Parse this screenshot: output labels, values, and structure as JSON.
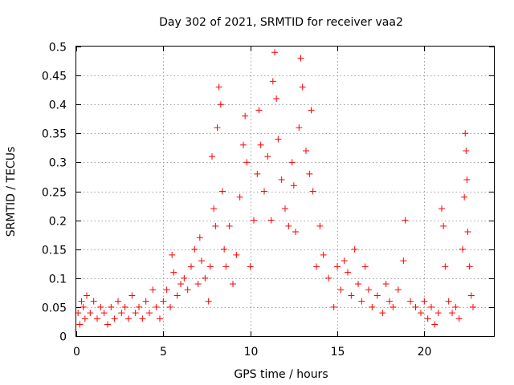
{
  "chart_data": {
    "type": "scatter",
    "title": "Day 302 of 2021, SRMTID for receiver vaa2",
    "xlabel": "GPS time / hours",
    "ylabel": "SRMTID / TECUs",
    "xlim": [
      0,
      24
    ],
    "ylim": [
      0,
      0.5
    ],
    "xticks": [
      0,
      5,
      10,
      15,
      20
    ],
    "xtick_labels": [
      "0",
      "5",
      "10",
      "15",
      "20"
    ],
    "yticks": [
      0,
      0.05,
      0.1,
      0.15,
      0.2,
      0.25,
      0.3,
      0.35,
      0.4,
      0.45,
      0.5
    ],
    "ytick_labels": [
      "0",
      "0.05",
      "0.1",
      "0.15",
      "0.2",
      "0.25",
      "0.3",
      "0.35",
      "0.4",
      "0.45",
      "0.5"
    ],
    "grid": true,
    "marker": "+",
    "color": "#ff0000",
    "series": [
      {
        "name": "SRMTID",
        "points": [
          [
            0.1,
            0.04
          ],
          [
            0.2,
            0.02
          ],
          [
            0.3,
            0.06
          ],
          [
            0.4,
            0.05
          ],
          [
            0.5,
            0.03
          ],
          [
            0.6,
            0.07
          ],
          [
            0.8,
            0.04
          ],
          [
            1.0,
            0.06
          ],
          [
            1.2,
            0.03
          ],
          [
            1.4,
            0.05
          ],
          [
            1.6,
            0.04
          ],
          [
            1.8,
            0.02
          ],
          [
            2.0,
            0.05
          ],
          [
            2.2,
            0.03
          ],
          [
            2.4,
            0.06
          ],
          [
            2.6,
            0.04
          ],
          [
            2.8,
            0.05
          ],
          [
            3.0,
            0.03
          ],
          [
            3.2,
            0.07
          ],
          [
            3.4,
            0.04
          ],
          [
            3.6,
            0.05
          ],
          [
            3.8,
            0.03
          ],
          [
            4.0,
            0.06
          ],
          [
            4.2,
            0.04
          ],
          [
            4.4,
            0.08
          ],
          [
            4.6,
            0.05
          ],
          [
            4.8,
            0.03
          ],
          [
            5.0,
            0.06
          ],
          [
            5.2,
            0.08
          ],
          [
            5.4,
            0.05
          ],
          [
            5.5,
            0.14
          ],
          [
            5.6,
            0.11
          ],
          [
            5.8,
            0.07
          ],
          [
            6.0,
            0.09
          ],
          [
            6.2,
            0.1
          ],
          [
            6.4,
            0.08
          ],
          [
            6.6,
            0.12
          ],
          [
            6.8,
            0.15
          ],
          [
            7.0,
            0.09
          ],
          [
            7.1,
            0.17
          ],
          [
            7.2,
            0.13
          ],
          [
            7.4,
            0.1
          ],
          [
            7.6,
            0.06
          ],
          [
            7.7,
            0.12
          ],
          [
            7.8,
            0.31
          ],
          [
            7.9,
            0.22
          ],
          [
            8.0,
            0.19
          ],
          [
            8.1,
            0.36
          ],
          [
            8.2,
            0.43
          ],
          [
            8.3,
            0.4
          ],
          [
            8.4,
            0.25
          ],
          [
            8.5,
            0.15
          ],
          [
            8.6,
            0.12
          ],
          [
            8.8,
            0.19
          ],
          [
            9.0,
            0.09
          ],
          [
            9.2,
            0.14
          ],
          [
            9.4,
            0.24
          ],
          [
            9.6,
            0.33
          ],
          [
            9.7,
            0.38
          ],
          [
            9.8,
            0.3
          ],
          [
            10.0,
            0.12
          ],
          [
            10.2,
            0.2
          ],
          [
            10.4,
            0.28
          ],
          [
            10.5,
            0.39
          ],
          [
            10.6,
            0.33
          ],
          [
            10.8,
            0.25
          ],
          [
            11.0,
            0.31
          ],
          [
            11.2,
            0.2
          ],
          [
            11.3,
            0.44
          ],
          [
            11.4,
            0.49
          ],
          [
            11.5,
            0.41
          ],
          [
            11.6,
            0.34
          ],
          [
            11.8,
            0.27
          ],
          [
            12.0,
            0.22
          ],
          [
            12.2,
            0.19
          ],
          [
            12.4,
            0.3
          ],
          [
            12.5,
            0.26
          ],
          [
            12.6,
            0.18
          ],
          [
            12.8,
            0.36
          ],
          [
            12.9,
            0.48
          ],
          [
            13.0,
            0.43
          ],
          [
            13.2,
            0.32
          ],
          [
            13.4,
            0.28
          ],
          [
            13.5,
            0.39
          ],
          [
            13.6,
            0.25
          ],
          [
            13.8,
            0.12
          ],
          [
            14.0,
            0.19
          ],
          [
            14.2,
            0.14
          ],
          [
            14.5,
            0.1
          ],
          [
            14.8,
            0.05
          ],
          [
            15.0,
            0.12
          ],
          [
            15.2,
            0.08
          ],
          [
            15.4,
            0.13
          ],
          [
            15.6,
            0.11
          ],
          [
            15.8,
            0.07
          ],
          [
            16.0,
            0.15
          ],
          [
            16.2,
            0.09
          ],
          [
            16.4,
            0.06
          ],
          [
            16.6,
            0.12
          ],
          [
            16.8,
            0.08
          ],
          [
            17.0,
            0.05
          ],
          [
            17.3,
            0.07
          ],
          [
            17.6,
            0.04
          ],
          [
            17.8,
            0.09
          ],
          [
            18.0,
            0.06
          ],
          [
            18.2,
            0.05
          ],
          [
            18.5,
            0.08
          ],
          [
            18.8,
            0.13
          ],
          [
            18.9,
            0.2
          ],
          [
            19.2,
            0.06
          ],
          [
            19.5,
            0.05
          ],
          [
            19.8,
            0.04
          ],
          [
            20.0,
            0.06
          ],
          [
            20.2,
            0.03
          ],
          [
            20.4,
            0.05
          ],
          [
            20.6,
            0.02
          ],
          [
            20.8,
            0.04
          ],
          [
            21.0,
            0.22
          ],
          [
            21.1,
            0.19
          ],
          [
            21.2,
            0.12
          ],
          [
            21.4,
            0.06
          ],
          [
            21.6,
            0.04
          ],
          [
            21.8,
            0.05
          ],
          [
            22.0,
            0.03
          ],
          [
            22.2,
            0.15
          ],
          [
            22.3,
            0.24
          ],
          [
            22.35,
            0.35
          ],
          [
            22.4,
            0.32
          ],
          [
            22.45,
            0.27
          ],
          [
            22.5,
            0.18
          ],
          [
            22.6,
            0.12
          ],
          [
            22.7,
            0.07
          ],
          [
            22.8,
            0.05
          ]
        ]
      }
    ]
  }
}
